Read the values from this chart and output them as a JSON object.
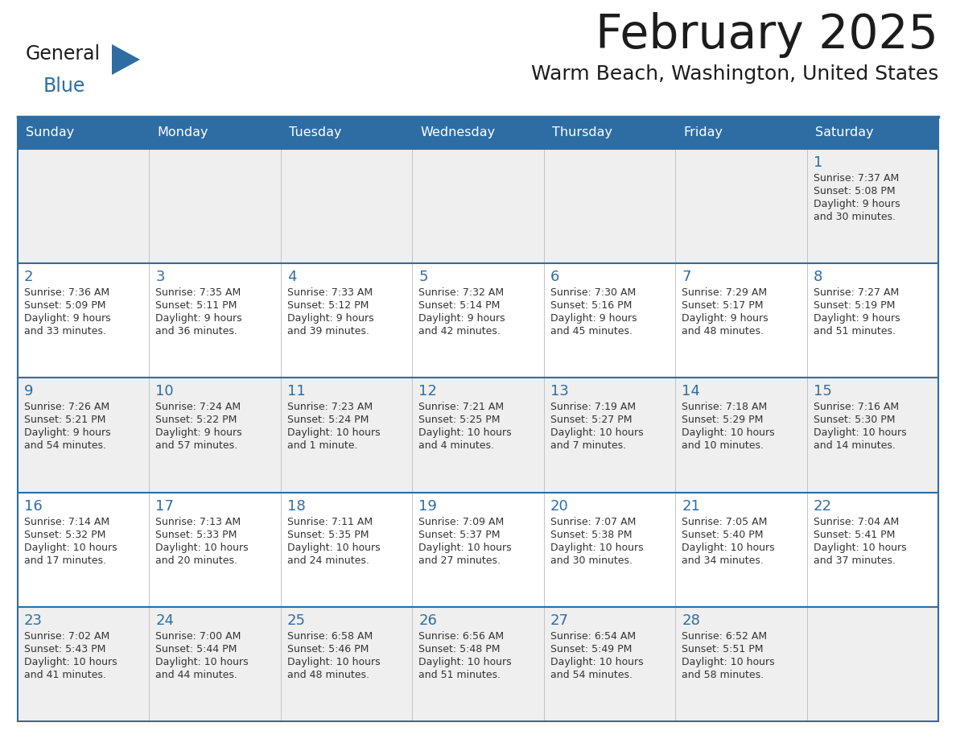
{
  "title": "February 2025",
  "subtitle": "Warm Beach, Washington, United States",
  "header_bg": "#2E6DA4",
  "header_text": "#FFFFFF",
  "cell_bg_even": "#EFEFEF",
  "cell_bg_odd": "#FFFFFF",
  "day_number_color": "#2E6DA4",
  "text_color": "#333333",
  "line_color": "#2E6DA4",
  "days_of_week": [
    "Sunday",
    "Monday",
    "Tuesday",
    "Wednesday",
    "Thursday",
    "Friday",
    "Saturday"
  ],
  "calendar_data": [
    [
      null,
      null,
      null,
      null,
      null,
      null,
      {
        "day": "1",
        "sunrise": "7:37 AM",
        "sunset": "5:08 PM",
        "daylight_line1": "Daylight: 9 hours",
        "daylight_line2": "and 30 minutes."
      }
    ],
    [
      {
        "day": "2",
        "sunrise": "7:36 AM",
        "sunset": "5:09 PM",
        "daylight_line1": "Daylight: 9 hours",
        "daylight_line2": "and 33 minutes."
      },
      {
        "day": "3",
        "sunrise": "7:35 AM",
        "sunset": "5:11 PM",
        "daylight_line1": "Daylight: 9 hours",
        "daylight_line2": "and 36 minutes."
      },
      {
        "day": "4",
        "sunrise": "7:33 AM",
        "sunset": "5:12 PM",
        "daylight_line1": "Daylight: 9 hours",
        "daylight_line2": "and 39 minutes."
      },
      {
        "day": "5",
        "sunrise": "7:32 AM",
        "sunset": "5:14 PM",
        "daylight_line1": "Daylight: 9 hours",
        "daylight_line2": "and 42 minutes."
      },
      {
        "day": "6",
        "sunrise": "7:30 AM",
        "sunset": "5:16 PM",
        "daylight_line1": "Daylight: 9 hours",
        "daylight_line2": "and 45 minutes."
      },
      {
        "day": "7",
        "sunrise": "7:29 AM",
        "sunset": "5:17 PM",
        "daylight_line1": "Daylight: 9 hours",
        "daylight_line2": "and 48 minutes."
      },
      {
        "day": "8",
        "sunrise": "7:27 AM",
        "sunset": "5:19 PM",
        "daylight_line1": "Daylight: 9 hours",
        "daylight_line2": "and 51 minutes."
      }
    ],
    [
      {
        "day": "9",
        "sunrise": "7:26 AM",
        "sunset": "5:21 PM",
        "daylight_line1": "Daylight: 9 hours",
        "daylight_line2": "and 54 minutes."
      },
      {
        "day": "10",
        "sunrise": "7:24 AM",
        "sunset": "5:22 PM",
        "daylight_line1": "Daylight: 9 hours",
        "daylight_line2": "and 57 minutes."
      },
      {
        "day": "11",
        "sunrise": "7:23 AM",
        "sunset": "5:24 PM",
        "daylight_line1": "Daylight: 10 hours",
        "daylight_line2": "and 1 minute."
      },
      {
        "day": "12",
        "sunrise": "7:21 AM",
        "sunset": "5:25 PM",
        "daylight_line1": "Daylight: 10 hours",
        "daylight_line2": "and 4 minutes."
      },
      {
        "day": "13",
        "sunrise": "7:19 AM",
        "sunset": "5:27 PM",
        "daylight_line1": "Daylight: 10 hours",
        "daylight_line2": "and 7 minutes."
      },
      {
        "day": "14",
        "sunrise": "7:18 AM",
        "sunset": "5:29 PM",
        "daylight_line1": "Daylight: 10 hours",
        "daylight_line2": "and 10 minutes."
      },
      {
        "day": "15",
        "sunrise": "7:16 AM",
        "sunset": "5:30 PM",
        "daylight_line1": "Daylight: 10 hours",
        "daylight_line2": "and 14 minutes."
      }
    ],
    [
      {
        "day": "16",
        "sunrise": "7:14 AM",
        "sunset": "5:32 PM",
        "daylight_line1": "Daylight: 10 hours",
        "daylight_line2": "and 17 minutes."
      },
      {
        "day": "17",
        "sunrise": "7:13 AM",
        "sunset": "5:33 PM",
        "daylight_line1": "Daylight: 10 hours",
        "daylight_line2": "and 20 minutes."
      },
      {
        "day": "18",
        "sunrise": "7:11 AM",
        "sunset": "5:35 PM",
        "daylight_line1": "Daylight: 10 hours",
        "daylight_line2": "and 24 minutes."
      },
      {
        "day": "19",
        "sunrise": "7:09 AM",
        "sunset": "5:37 PM",
        "daylight_line1": "Daylight: 10 hours",
        "daylight_line2": "and 27 minutes."
      },
      {
        "day": "20",
        "sunrise": "7:07 AM",
        "sunset": "5:38 PM",
        "daylight_line1": "Daylight: 10 hours",
        "daylight_line2": "and 30 minutes."
      },
      {
        "day": "21",
        "sunrise": "7:05 AM",
        "sunset": "5:40 PM",
        "daylight_line1": "Daylight: 10 hours",
        "daylight_line2": "and 34 minutes."
      },
      {
        "day": "22",
        "sunrise": "7:04 AM",
        "sunset": "5:41 PM",
        "daylight_line1": "Daylight: 10 hours",
        "daylight_line2": "and 37 minutes."
      }
    ],
    [
      {
        "day": "23",
        "sunrise": "7:02 AM",
        "sunset": "5:43 PM",
        "daylight_line1": "Daylight: 10 hours",
        "daylight_line2": "and 41 minutes."
      },
      {
        "day": "24",
        "sunrise": "7:00 AM",
        "sunset": "5:44 PM",
        "daylight_line1": "Daylight: 10 hours",
        "daylight_line2": "and 44 minutes."
      },
      {
        "day": "25",
        "sunrise": "6:58 AM",
        "sunset": "5:46 PM",
        "daylight_line1": "Daylight: 10 hours",
        "daylight_line2": "and 48 minutes."
      },
      {
        "day": "26",
        "sunrise": "6:56 AM",
        "sunset": "5:48 PM",
        "daylight_line1": "Daylight: 10 hours",
        "daylight_line2": "and 51 minutes."
      },
      {
        "day": "27",
        "sunrise": "6:54 AM",
        "sunset": "5:49 PM",
        "daylight_line1": "Daylight: 10 hours",
        "daylight_line2": "and 54 minutes."
      },
      {
        "day": "28",
        "sunrise": "6:52 AM",
        "sunset": "5:51 PM",
        "daylight_line1": "Daylight: 10 hours",
        "daylight_line2": "and 58 minutes."
      },
      null
    ]
  ]
}
